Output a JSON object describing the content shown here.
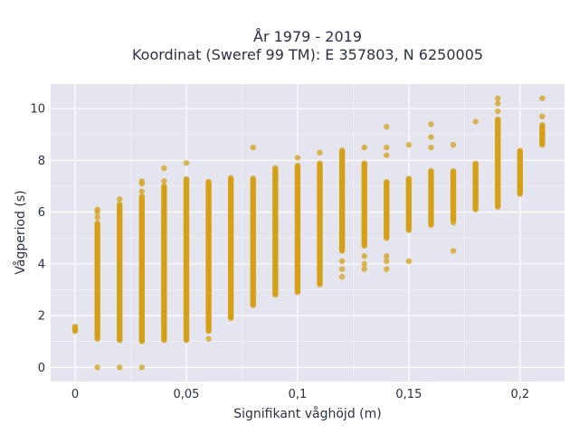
{
  "chart_data": {
    "type": "scatter",
    "title_line1": "År 1979 - 2019",
    "title_line2": "Koordinat (Sweref 99 TM): E 357803, N 6250005",
    "xlabel": "Signifikant våghöjd (m)",
    "ylabel": "Vågperiod (s)",
    "xlim": [
      -0.011,
      0.22
    ],
    "ylim": [
      -0.55,
      10.95
    ],
    "x_ticks": [
      0,
      0.05,
      0.1,
      0.15,
      0.2
    ],
    "x_tick_labels": [
      "0",
      "0,05",
      "0,1",
      "0,15",
      "0,2"
    ],
    "y_ticks": [
      0,
      2,
      4,
      6,
      8,
      10
    ],
    "y_tick_labels": [
      "0",
      "2",
      "4",
      "6",
      "8",
      "10"
    ],
    "grid": true,
    "colors": {
      "marker": "#d4a017",
      "plot_bg": "#e5e5f0",
      "grid": "#ffffff"
    },
    "columns": [
      {
        "x": 0.0,
        "ymin": 1.4,
        "ymax": 1.6,
        "outliers": []
      },
      {
        "x": 0.01,
        "ymin": 1.1,
        "ymax": 5.6,
        "outliers": [
          0,
          5.8,
          6.0,
          6.1
        ]
      },
      {
        "x": 0.02,
        "ymin": 1.05,
        "ymax": 6.3,
        "outliers": [
          0,
          6.5
        ]
      },
      {
        "x": 0.03,
        "ymin": 1.0,
        "ymax": 6.6,
        "outliers": [
          0,
          6.8,
          7.1,
          7.2
        ]
      },
      {
        "x": 0.04,
        "ymin": 1.05,
        "ymax": 7.0,
        "outliers": [
          7.2,
          7.7
        ]
      },
      {
        "x": 0.05,
        "ymin": 1.05,
        "ymax": 7.3,
        "outliers": [
          7.9
        ]
      },
      {
        "x": 0.06,
        "ymin": 1.4,
        "ymax": 7.2,
        "outliers": [
          1.1
        ]
      },
      {
        "x": 0.07,
        "ymin": 1.9,
        "ymax": 7.35,
        "outliers": []
      },
      {
        "x": 0.08,
        "ymin": 2.4,
        "ymax": 7.3,
        "outliers": [
          8.5
        ]
      },
      {
        "x": 0.09,
        "ymin": 2.8,
        "ymax": 7.7,
        "outliers": []
      },
      {
        "x": 0.1,
        "ymin": 2.9,
        "ymax": 7.8,
        "outliers": [
          8.1
        ]
      },
      {
        "x": 0.11,
        "ymin": 3.2,
        "ymax": 7.9,
        "outliers": [
          3.8,
          8.3
        ]
      },
      {
        "x": 0.12,
        "ymin": 4.5,
        "ymax": 8.4,
        "outliers": [
          3.5,
          3.8,
          4.1
        ]
      },
      {
        "x": 0.13,
        "ymin": 4.7,
        "ymax": 7.9,
        "outliers": [
          3.8,
          4.0,
          4.3,
          8.5
        ]
      },
      {
        "x": 0.14,
        "ymin": 5.0,
        "ymax": 7.2,
        "outliers": [
          3.8,
          4.1,
          4.3,
          8.2,
          8.5,
          9.3
        ]
      },
      {
        "x": 0.15,
        "ymin": 5.3,
        "ymax": 7.3,
        "outliers": [
          4.1,
          8.6
        ]
      },
      {
        "x": 0.16,
        "ymin": 5.5,
        "ymax": 7.6,
        "outliers": [
          8.5,
          8.9,
          9.4
        ]
      },
      {
        "x": 0.17,
        "ymin": 5.7,
        "ymax": 7.6,
        "outliers": [
          4.5,
          5.6,
          8.6
        ]
      },
      {
        "x": 0.18,
        "ymin": 6.1,
        "ymax": 7.9,
        "outliers": [
          9.5
        ]
      },
      {
        "x": 0.19,
        "ymin": 6.2,
        "ymax": 9.6,
        "outliers": [
          9.9,
          10.2,
          10.4
        ]
      },
      {
        "x": 0.2,
        "ymin": 6.7,
        "ymax": 8.4,
        "outliers": []
      },
      {
        "x": 0.21,
        "ymin": 8.6,
        "ymax": 9.4,
        "outliers": [
          9.7,
          10.4
        ]
      }
    ]
  }
}
